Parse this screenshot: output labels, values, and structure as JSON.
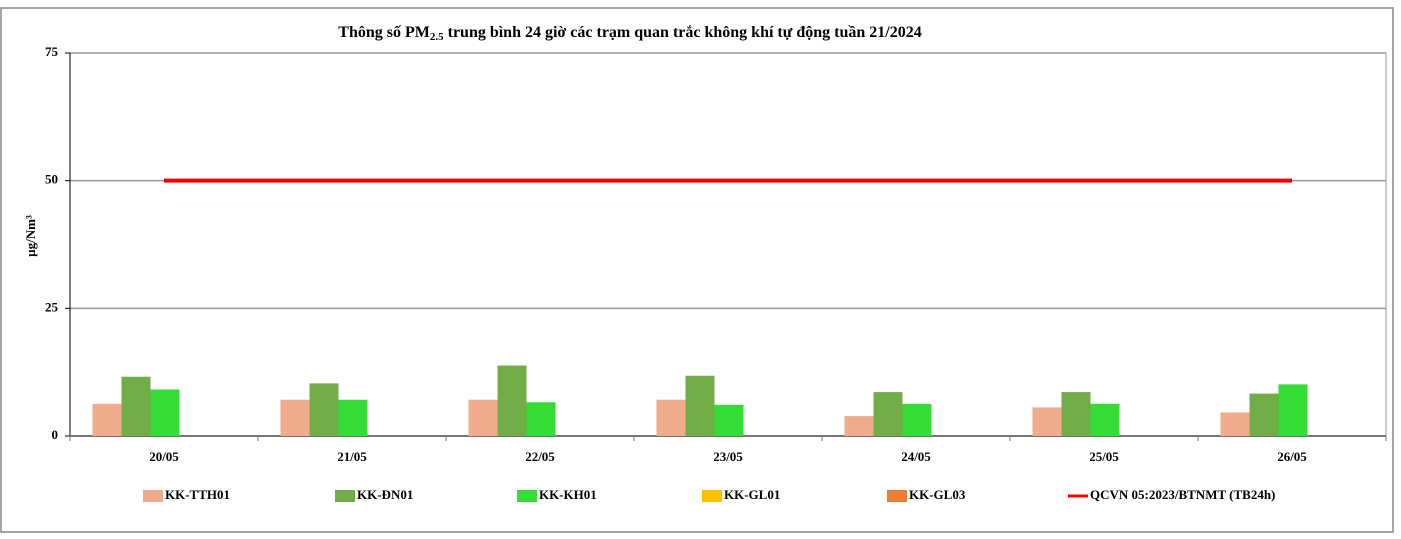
{
  "chart_data": {
    "type": "bar",
    "title": [
      "Thông số PM",
      "2.5",
      " trung bình 24 giờ các trạm quan trắc không khí tự động tuần 21/2024"
    ],
    "y_label": "µg/Nm³",
    "categories": [
      "20/05",
      "21/05",
      "22/05",
      "23/05",
      "24/05",
      "25/05",
      "26/05"
    ],
    "series": [
      {
        "name": "KK-TTH01",
        "color": "#f0ab8c",
        "values": [
          6.3,
          7.1,
          7.1,
          7.1,
          3.9,
          5.6,
          4.6
        ]
      },
      {
        "name": "KK-ĐN01",
        "color": "#70ad47",
        "values": [
          11.6,
          10.3,
          13.8,
          11.8,
          8.6,
          8.6,
          8.3
        ]
      },
      {
        "name": "KK-KH01",
        "color": "#33dd33",
        "values": [
          9.1,
          7.1,
          6.6,
          6.1,
          6.3,
          6.3,
          10.1
        ]
      },
      {
        "name": "KK-GL01",
        "color": "#ffc000",
        "values": [
          null,
          null,
          null,
          null,
          null,
          null,
          null
        ]
      },
      {
        "name": "KK-GL03",
        "color": "#ed7d31",
        "values": [
          null,
          null,
          null,
          null,
          null,
          null,
          null
        ]
      },
      {
        "name": "QCVN 05:2023/BTNMT (TB24h)",
        "color": "#ee0000",
        "type": "line",
        "values": [
          50,
          50,
          50,
          50,
          50,
          50,
          50
        ]
      }
    ],
    "ylim": [
      0,
      75
    ],
    "yticks": [
      0,
      25,
      50,
      75
    ],
    "grid": true,
    "legend": "bottom"
  }
}
